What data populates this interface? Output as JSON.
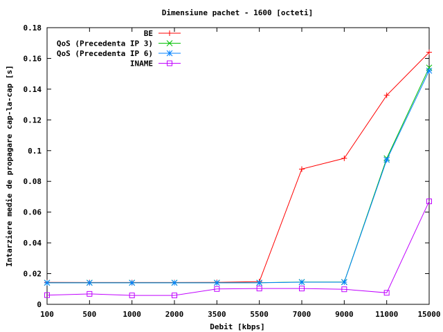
{
  "chart_data": {
    "type": "line",
    "title": "Dimensiune pachet - 1600 [octeti]",
    "xlabel": "Debit [kbps]",
    "ylabel": "Intarziere medie de propagare cap-la-cap [s]",
    "categories": [
      "100",
      "500",
      "1000",
      "2000",
      "3500",
      "5500",
      "7000",
      "9000",
      "11000",
      "15000"
    ],
    "ylim": [
      0,
      0.18
    ],
    "y_ticks": [
      "0",
      "0.02",
      "0.04",
      "0.06",
      "0.08",
      "0.1",
      "0.12",
      "0.14",
      "0.16",
      "0.18"
    ],
    "legend_position": "top-left",
    "grid": false,
    "series": [
      {
        "name": "BE",
        "color": "#ff0000",
        "marker": "plus",
        "values": [
          0.0143,
          0.0142,
          0.0142,
          0.0142,
          0.0143,
          0.0148,
          0.088,
          0.095,
          0.136,
          0.164
        ]
      },
      {
        "name": "QoS (Precedenta IP 3)",
        "color": "#00c000",
        "marker": "cross",
        "values": [
          0.0141,
          0.0141,
          0.0141,
          0.0141,
          0.0141,
          0.0141,
          0.0145,
          0.0145,
          0.095,
          0.154
        ]
      },
      {
        "name": "QoS (Precedenta IP 6)",
        "color": "#0080ff",
        "marker": "star",
        "values": [
          0.014,
          0.014,
          0.014,
          0.014,
          0.014,
          0.014,
          0.0144,
          0.0144,
          0.094,
          0.152
        ]
      },
      {
        "name": "INAME",
        "color": "#c000ff",
        "marker": "square",
        "values": [
          0.006,
          0.0068,
          0.0058,
          0.0058,
          0.01,
          0.0103,
          0.0103,
          0.0098,
          0.0075,
          0.067
        ]
      }
    ]
  }
}
